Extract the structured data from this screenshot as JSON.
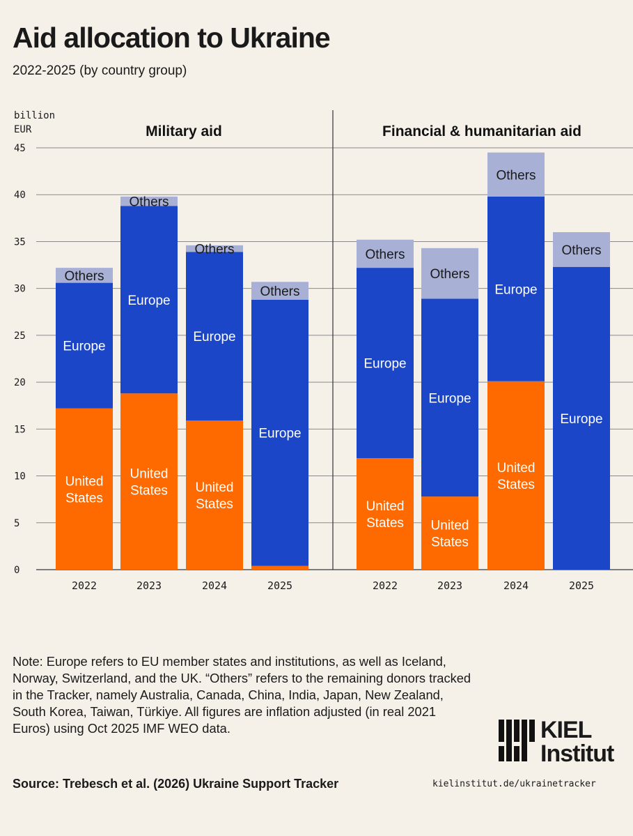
{
  "header": {
    "title": "Aid allocation to Ukraine",
    "subtitle": "2022-2025 (by country group)"
  },
  "chart_data": {
    "type": "bar",
    "stacked": true,
    "y_unit_label": [
      "billion",
      "EUR"
    ],
    "ylim": [
      0,
      45
    ],
    "y_ticks": [
      0,
      5,
      10,
      15,
      20,
      25,
      30,
      35,
      40,
      45
    ],
    "grid": true,
    "colors": {
      "United States": "#ff6a00",
      "Europe": "#1c46c8",
      "Others": "#a9b0d6"
    },
    "panels": [
      {
        "title": "Military aid",
        "categories": [
          "2022",
          "2023",
          "2024",
          "2025"
        ],
        "series": [
          {
            "name": "United States",
            "label": "United\nStates",
            "values": [
              17.2,
              18.8,
              15.9,
              0.4
            ],
            "show_label": [
              true,
              true,
              true,
              false
            ]
          },
          {
            "name": "Europe",
            "label": "Europe",
            "values": [
              13.4,
              20.0,
              18.0,
              28.4
            ],
            "show_label": [
              true,
              true,
              true,
              true
            ]
          },
          {
            "name": "Others",
            "label": "Others",
            "values": [
              1.6,
              1.0,
              0.7,
              1.9
            ],
            "show_label": [
              true,
              true,
              true,
              true
            ]
          }
        ]
      },
      {
        "title": "Financial & humanitarian aid",
        "categories": [
          "2022",
          "2023",
          "2024",
          "2025"
        ],
        "series": [
          {
            "name": "United States",
            "label": "United\nStates",
            "values": [
              11.9,
              7.8,
              20.1,
              0
            ],
            "show_label": [
              true,
              true,
              true,
              false
            ]
          },
          {
            "name": "Europe",
            "label": "Europe",
            "values": [
              20.3,
              21.1,
              19.7,
              32.3
            ],
            "show_label": [
              true,
              true,
              true,
              true
            ]
          },
          {
            "name": "Others",
            "label": "Others",
            "values": [
              3.0,
              5.4,
              4.7,
              3.7
            ],
            "show_label": [
              true,
              true,
              true,
              true
            ]
          }
        ]
      }
    ]
  },
  "footer": {
    "note": "Note: Europe refers to EU member states and institutions, as well as Iceland, Norway, Switzerland, and the UK. “Others” refers to the remaining donors tracked in the Tracker, namely Australia, Canada, China, India, Japan, New Zealand, South Korea, Taiwan, Türkiye. All figures are inflation adjusted (in real 2021 Euros) using Oct 2025 IMF WEO data.",
    "source": "Source: Trebesch et al. (2026) Ukraine Support Tracker",
    "url": "kielinstitut.de/ukrainetracker"
  },
  "logo": {
    "line1": "KIEL",
    "line2": "Institut",
    "icon": "kiel-bars-logo-icon"
  }
}
